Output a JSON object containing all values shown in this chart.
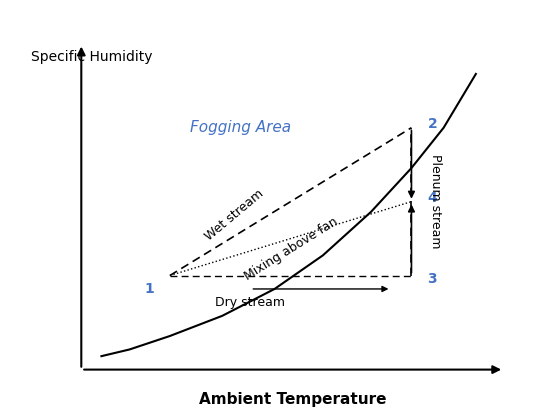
{
  "xlabel": "Ambient Temperature",
  "ylabel": "Specific Humidity",
  "background": "#ffffff",
  "fogging_area_text": "Fogging Area",
  "fogging_color": "#4472C4",
  "point1": [
    0.22,
    0.28
  ],
  "point2": [
    0.82,
    0.72
  ],
  "point3": [
    0.82,
    0.28
  ],
  "point4": [
    0.82,
    0.5
  ],
  "sat_curve_x": [
    0.05,
    0.12,
    0.22,
    0.35,
    0.48,
    0.6,
    0.72,
    0.82,
    0.9,
    0.98
  ],
  "sat_curve_y": [
    0.04,
    0.06,
    0.1,
    0.16,
    0.24,
    0.34,
    0.47,
    0.6,
    0.72,
    0.88
  ],
  "xlim": [
    0,
    1.05
  ],
  "ylim": [
    0,
    1.0
  ]
}
